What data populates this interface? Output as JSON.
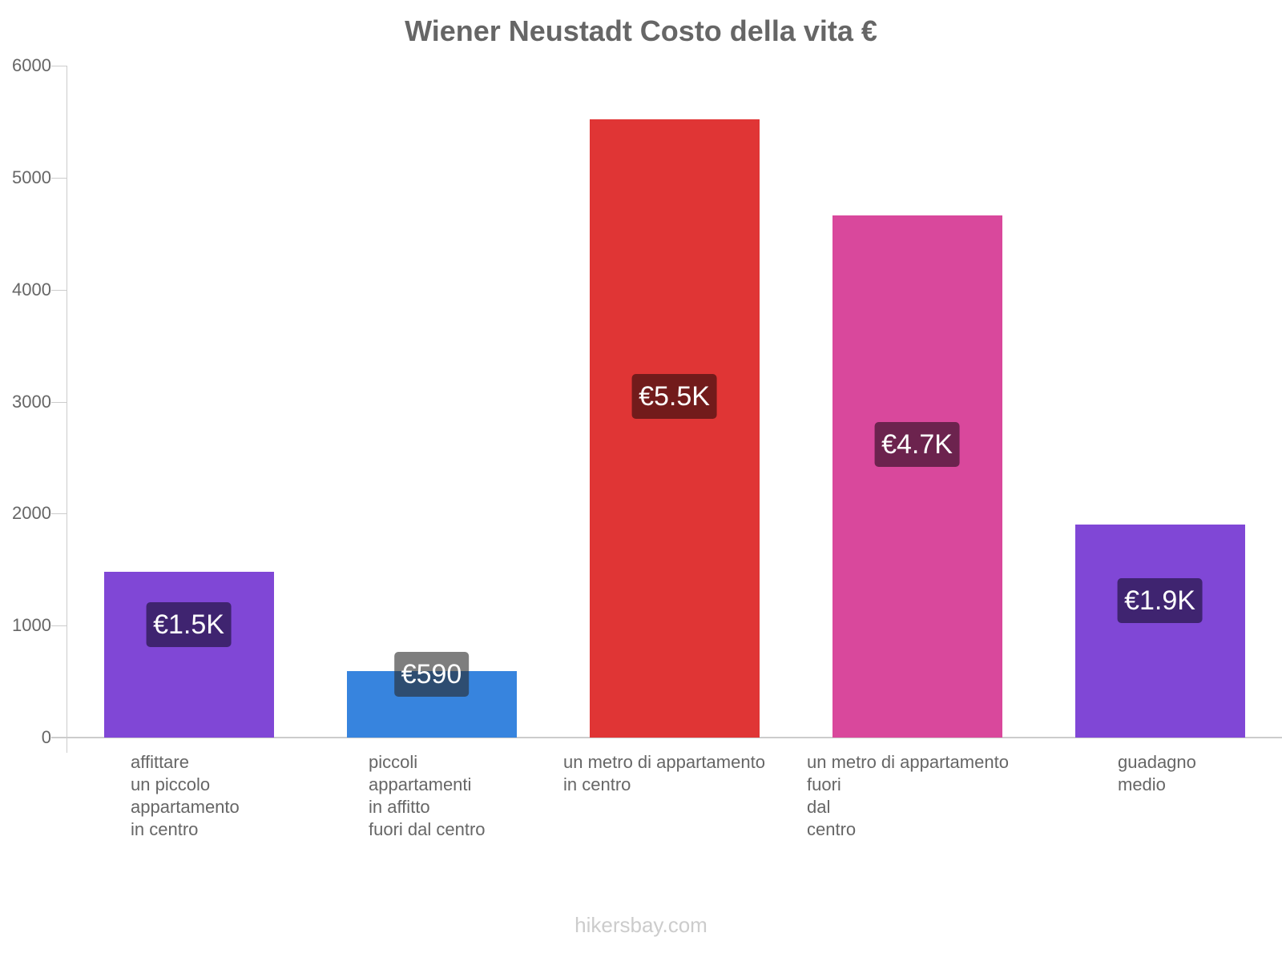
{
  "chart_data": {
    "type": "bar",
    "title": "Wiener Neustadt Costo della vita €",
    "xlabel": "",
    "ylabel": "",
    "ylim": [
      0,
      6000
    ],
    "yticks": [
      "0",
      "1000",
      "2000",
      "3000",
      "4000",
      "5000",
      "6000"
    ],
    "grid": false,
    "legend": null,
    "categories": [
      "affittare un piccolo appartamento in centro",
      "piccoli appartamenti in affitto fuori dal centro",
      "un metro di appartamento in centro",
      "un metro di appartamento fuori dal centro",
      "guadagno medio"
    ],
    "values": [
      1480,
      590,
      5520,
      4660,
      1900
    ],
    "data_labels": [
      "€1.5K",
      "€590",
      "€5.5K",
      "€4.7K",
      "€1.9K"
    ],
    "colors": [
      "#8047d6",
      "#3784de",
      "#e03535",
      "#d9489c",
      "#8047d6"
    ],
    "label_bg_colors": [
      "#3f2470",
      "#1e446f",
      "#721b1b",
      "#6c234e",
      "#3f2470"
    ]
  },
  "chart": {
    "title": "Wiener Neustadt Costo della vita €",
    "y_ticks": [
      "0",
      "1000",
      "2000",
      "3000",
      "4000",
      "5000",
      "6000"
    ],
    "bars": [
      {
        "label_lines": "affittare\nun piccolo\nappartamento\nin centro",
        "value_label": "€1.5K"
      },
      {
        "label_lines": "piccoli\nappartamenti\nin affitto\nfuori dal centro",
        "value_label": "€590"
      },
      {
        "label_lines": "un metro di appartamento\nin centro",
        "value_label": "€5.5K"
      },
      {
        "label_lines": "un metro di appartamento\nfuori\ndal\ncentro",
        "value_label": "€4.7K"
      },
      {
        "label_lines": "guadagno\nmedio",
        "value_label": "€1.9K"
      }
    ]
  },
  "footer": {
    "watermark": "hikersbay.com"
  }
}
